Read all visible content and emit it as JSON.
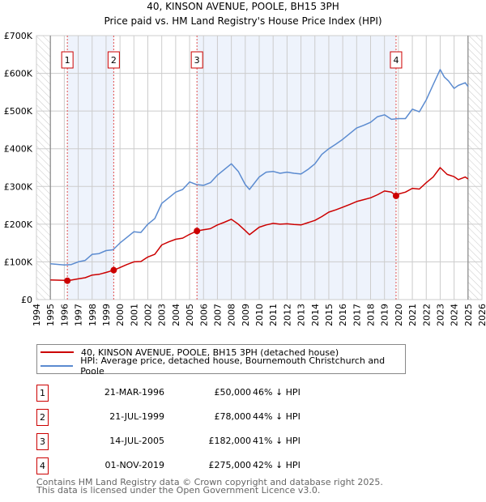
{
  "title": "40, KINSON AVENUE, POOLE, BH15 3PH",
  "subtitle": "Price paid vs. HM Land Registry's House Price Index (HPI)",
  "colors": {
    "property": "#cc0000",
    "hpi": "#5b8bd0",
    "shade": "#eef3fc"
  },
  "legend": {
    "property": "40, KINSON AVENUE, POOLE, BH15 3PH (detached house)",
    "hpi": "HPI: Average price, detached house, Bournemouth Christchurch and Poole"
  },
  "sales": [
    {
      "label": "1",
      "date": "21-MAR-1996",
      "price": "£50,000",
      "pct": "46% ↓ HPI"
    },
    {
      "label": "2",
      "date": "21-JUL-1999",
      "price": "£78,000",
      "pct": "44% ↓ HPI"
    },
    {
      "label": "3",
      "date": "14-JUL-2005",
      "price": "£182,000",
      "pct": "41% ↓ HPI"
    },
    {
      "label": "4",
      "date": "01-NOV-2019",
      "price": "£275,000",
      "pct": "42% ↓ HPI"
    }
  ],
  "footer": [
    "Contains HM Land Registry data © Crown copyright and database right 2025.",
    "This data is licensed under the Open Government Licence v3.0."
  ],
  "chart_data": {
    "type": "line",
    "xlim": [
      1994,
      2026
    ],
    "ylim": [
      0,
      700000
    ],
    "yticks": [
      0,
      100000,
      200000,
      300000,
      400000,
      500000,
      600000,
      700000
    ],
    "ytick_labels": [
      "£0",
      "£100K",
      "£200K",
      "£300K",
      "£400K",
      "£500K",
      "£600K",
      "£700K"
    ],
    "xticks": [
      "1994",
      "1995",
      "1996",
      "1997",
      "1998",
      "1999",
      "2000",
      "2001",
      "2002",
      "2003",
      "2004",
      "2005",
      "2006",
      "2007",
      "2008",
      "2009",
      "2010",
      "2011",
      "2012",
      "2013",
      "2014",
      "2015",
      "2016",
      "2017",
      "2018",
      "2019",
      "2020",
      "2021",
      "2022",
      "2023",
      "2024",
      "2025",
      "2026"
    ],
    "grid": true,
    "data_range": [
      1995,
      2025
    ],
    "sale_points": [
      {
        "x": 1996.22,
        "y": 50000,
        "label": "1"
      },
      {
        "x": 1999.55,
        "y": 78000,
        "label": "2"
      },
      {
        "x": 2005.53,
        "y": 182000,
        "label": "3"
      },
      {
        "x": 2019.83,
        "y": 275000,
        "label": "4"
      }
    ],
    "series": [
      {
        "name": "40, KINSON AVENUE, POOLE, BH15 3PH (detached house)",
        "x": [
          1995,
          1996,
          1996.22,
          1997,
          1997.5,
          1998,
          1998.5,
          1999,
          1999.55,
          2000,
          2000.5,
          2001,
          2001.5,
          2002,
          2002.5,
          2003,
          2003.5,
          2004,
          2004.5,
          2005,
          2005.53,
          2006,
          2006.5,
          2007,
          2007.5,
          2008,
          2008.5,
          2009,
          2009.3,
          2010,
          2010.5,
          2011,
          2011.5,
          2012,
          2012.5,
          2013,
          2013.5,
          2014,
          2014.5,
          2015,
          2015.5,
          2016,
          2016.5,
          2017,
          2017.5,
          2018,
          2018.5,
          2019,
          2019.5,
          2019.83,
          2020,
          2020.5,
          2021,
          2021.5,
          2022,
          2022.5,
          2023,
          2023.5,
          2024,
          2024.3,
          2024.8,
          2025
        ],
        "y": [
          52000,
          51000,
          50000,
          55000,
          58000,
          65000,
          67000,
          72000,
          78000,
          85000,
          93000,
          100000,
          101000,
          113000,
          120000,
          145000,
          153000,
          160000,
          163000,
          173000,
          182000,
          185000,
          188000,
          198000,
          205000,
          213000,
          200000,
          183000,
          172000,
          192000,
          198000,
          202000,
          200000,
          201000,
          199000,
          198000,
          204000,
          210000,
          220000,
          232000,
          238000,
          245000,
          252000,
          260000,
          265000,
          270000,
          278000,
          288000,
          285000,
          275000,
          280000,
          285000,
          295000,
          293000,
          310000,
          325000,
          350000,
          332000,
          326000,
          318000,
          325000,
          320000
        ]
      },
      {
        "name": "HPI: Average price, detached house, Bournemouth Christchurch and Poole",
        "x": [
          1995,
          1996,
          1996.5,
          1997,
          1997.5,
          1998,
          1998.5,
          1999,
          1999.5,
          2000,
          2000.5,
          2001,
          2001.5,
          2002,
          2002.5,
          2003,
          2003.5,
          2004,
          2004.5,
          2005,
          2005.5,
          2006,
          2006.5,
          2007,
          2007.5,
          2008,
          2008.5,
          2009,
          2009.3,
          2010,
          2010.5,
          2011,
          2011.5,
          2012,
          2012.5,
          2013,
          2013.5,
          2014,
          2014.5,
          2015,
          2015.5,
          2016,
          2016.5,
          2017,
          2017.5,
          2018,
          2018.5,
          2019,
          2019.5,
          2020,
          2020.5,
          2021,
          2021.5,
          2022,
          2022.5,
          2023,
          2023.3,
          2023.6,
          2024,
          2024.3,
          2024.8,
          2025
        ],
        "y": [
          95000,
          92000,
          93000,
          100000,
          104000,
          120000,
          122000,
          130000,
          132000,
          150000,
          165000,
          180000,
          178000,
          200000,
          215000,
          255000,
          270000,
          285000,
          292000,
          312000,
          305000,
          303000,
          310000,
          330000,
          345000,
          360000,
          340000,
          305000,
          292000,
          325000,
          338000,
          340000,
          335000,
          338000,
          335000,
          333000,
          345000,
          360000,
          385000,
          400000,
          412000,
          425000,
          440000,
          455000,
          462000,
          470000,
          485000,
          490000,
          478000,
          480000,
          480000,
          505000,
          498000,
          530000,
          570000,
          610000,
          590000,
          580000,
          560000,
          568000,
          575000,
          565000
        ]
      }
    ]
  }
}
